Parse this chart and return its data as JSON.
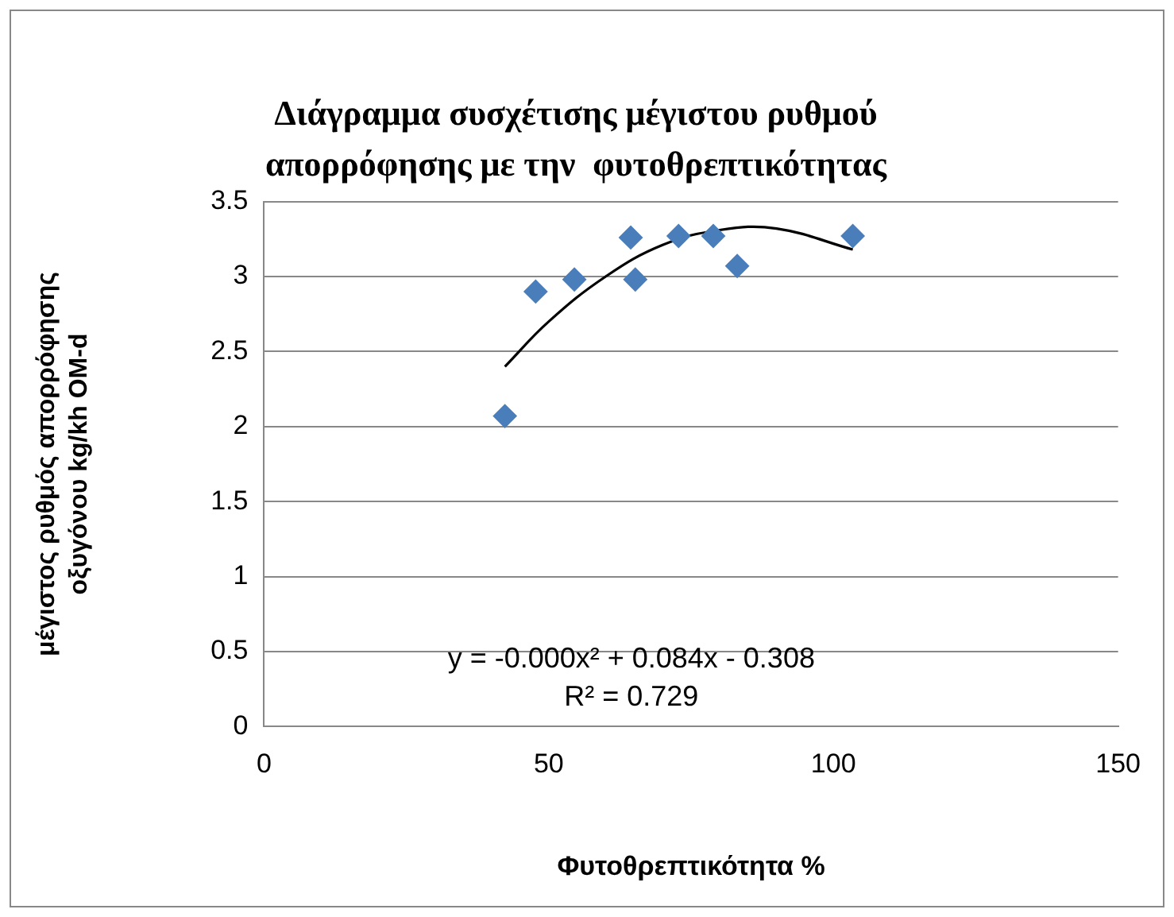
{
  "chart_data": {
    "type": "scatter",
    "title": "Διάγραμμα συσχέτισης μέγιστου ρυθμού απορρόφησης με την  φυτοθρεπτικότητας",
    "xlabel": "Φυτοθρεπτικότητα %",
    "ylabel": "μέγιστος ρυθμός απορρόφησης οξυγόνου kg/kh OM-d",
    "x": [
      42.3,
      47.7,
      54.5,
      64.4,
      65.2,
      72.8,
      78.9,
      83.1,
      103.4
    ],
    "series": [
      {
        "color": "#4a7ebb",
        "values": [
          2.07,
          2.9,
          2.98,
          3.26,
          2.98,
          3.27,
          3.27,
          3.07,
          3.27
        ],
        "marker": "diamond"
      },
      {
        "type": "line",
        "color": "#000000",
        "x": [
          42.3,
          50,
          60,
          70,
          80,
          90,
          103.4
        ],
        "values": [
          2.4,
          2.7,
          3.0,
          3.21,
          3.31,
          3.32,
          3.18
        ],
        "marker": "none",
        "line_style": "solid"
      }
    ],
    "xlim": [
      0,
      150
    ],
    "xticks": [
      0,
      50,
      100,
      150
    ],
    "ylim": [
      0,
      3.5
    ],
    "yticks": [
      0,
      0.5,
      1,
      1.5,
      2,
      2.5,
      3,
      3.5
    ],
    "grid": "y",
    "legend": false,
    "annotations": [
      "y = -0.000x² + 0.084x - 0.308",
      "R² = 0.729"
    ]
  }
}
